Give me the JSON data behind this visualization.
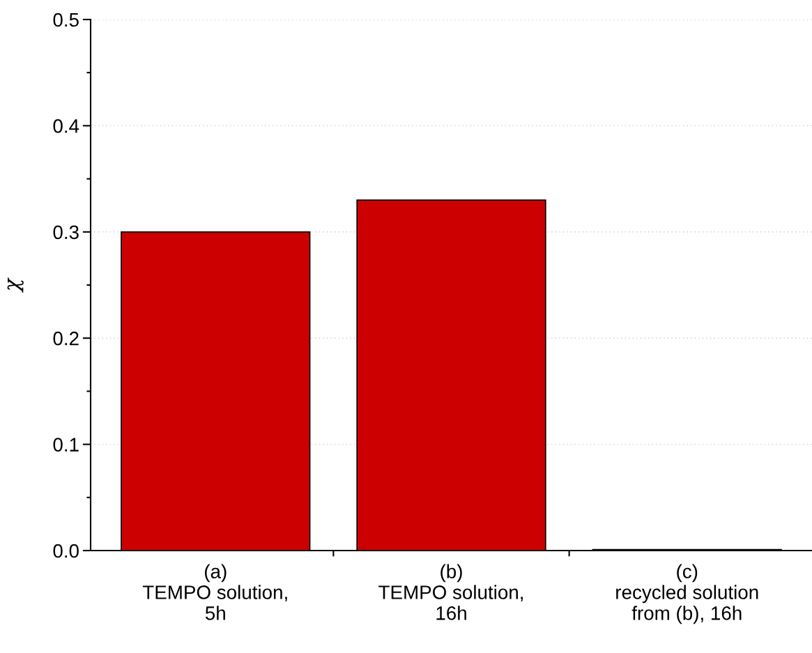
{
  "chart_data": {
    "type": "bar",
    "ylabel": "χ",
    "categories": [
      "(a)\nTEMPO solution,\n5h",
      "(b)\nTEMPO solution,\n16h",
      "(c)\nrecycled solution\nfrom (b), 16h"
    ],
    "values": [
      0.3,
      0.33,
      0.001
    ],
    "color": "#cc0000",
    "ylim": [
      0,
      0.5
    ],
    "yticks": [
      {
        "value": 0,
        "label": "0.0"
      },
      {
        "value": 0.05,
        "label": null
      },
      0.1,
      {
        "value": 0.15,
        "label": null
      },
      0.2,
      {
        "value": 0.25,
        "label": null
      },
      0.3,
      {
        "value": 0.35,
        "label": null
      },
      0.4,
      {
        "value": 0.45,
        "label": null
      },
      0.5
    ],
    "grid": "y",
    "legend": false
  }
}
